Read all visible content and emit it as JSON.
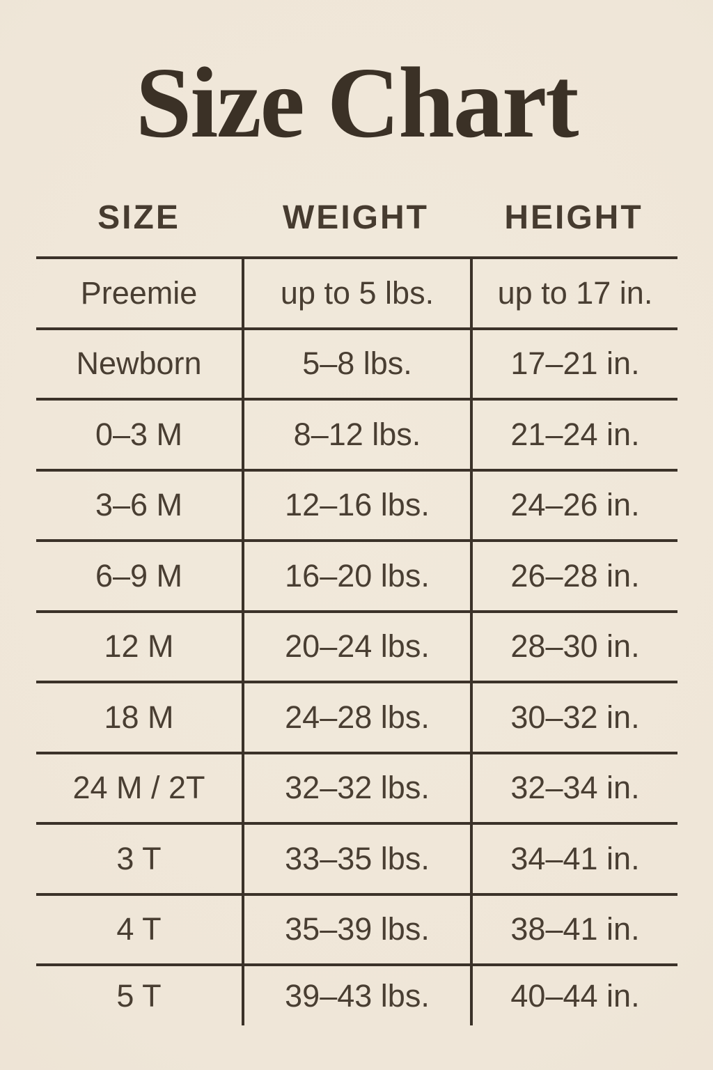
{
  "colors": {
    "background": "#efe6d8",
    "title_text": "#3b3126",
    "body_text": "#493e32",
    "line": "#3b3229"
  },
  "chart_data": {
    "type": "table",
    "title": "Size Chart",
    "columns": [
      "SIZE",
      "WEIGHT",
      "HEIGHT"
    ],
    "rows": [
      [
        "Preemie",
        "up to 5 lbs.",
        "up to 17 in."
      ],
      [
        "Newborn",
        "5–8 lbs.",
        "17–21 in."
      ],
      [
        "0–3 M",
        "8–12 lbs.",
        "21–24 in."
      ],
      [
        "3–6 M",
        "12–16 lbs.",
        "24–26 in."
      ],
      [
        "6–9 M",
        "16–20 lbs.",
        "26–28 in."
      ],
      [
        "12 M",
        "20–24 lbs.",
        "28–30 in."
      ],
      [
        "18 M",
        "24–28 lbs.",
        "30–32 in."
      ],
      [
        "24 M / 2T",
        "32–32 lbs.",
        "32–34 in."
      ],
      [
        "3 T",
        "33–35 lbs.",
        "34–41 in."
      ],
      [
        "4 T",
        "35–39 lbs.",
        "38–41 in."
      ],
      [
        "5 T",
        "39–43 lbs.",
        "40–44 in."
      ]
    ],
    "layout": {
      "grid": "horizontal rules between rows, vertical dividers between columns, no outer side borders, no bottom border on last row",
      "legend_position": "none"
    }
  }
}
